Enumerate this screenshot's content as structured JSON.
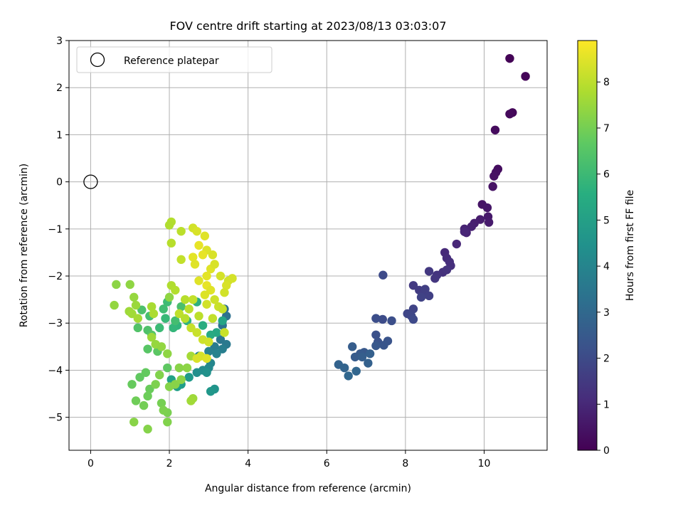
{
  "chart_data": {
    "type": "scatter",
    "title": "FOV centre drift starting at 2023/08/13 03:03:07",
    "xlabel": "Angular distance from reference (arcmin)",
    "ylabel": "Rotation from reference (arcmin)",
    "xlim": [
      -0.55,
      11.6
    ],
    "ylim": [
      -5.7,
      3.0
    ],
    "xticks": [
      0,
      2,
      4,
      6,
      8,
      10
    ],
    "yticks": [
      -5,
      -4,
      -3,
      -2,
      -1,
      0,
      1,
      2,
      3
    ],
    "grid": true,
    "legend": {
      "location": "upper-left",
      "entries": [
        "Reference platepar"
      ]
    },
    "reference_point": {
      "x": 0,
      "y": 0,
      "label": "Reference platepar"
    },
    "colorbar": {
      "label": "Hours from first FF file",
      "colormap": "viridis",
      "range": [
        0,
        8.9
      ],
      "ticks": [
        0,
        1,
        2,
        3,
        4,
        5,
        6,
        7,
        8
      ]
    },
    "series": [
      {
        "color_by": "hours",
        "points": [
          {
            "x": 10.65,
            "y": 2.62,
            "c": 0.05
          },
          {
            "x": 11.05,
            "y": 2.24,
            "c": 0.1
          },
          {
            "x": 10.72,
            "y": 1.47,
            "c": 0.15
          },
          {
            "x": 10.65,
            "y": 1.44,
            "c": 0.2
          },
          {
            "x": 10.28,
            "y": 1.1,
            "c": 0.25
          },
          {
            "x": 10.35,
            "y": 0.27,
            "c": 0.3
          },
          {
            "x": 10.3,
            "y": 0.2,
            "c": 0.35
          },
          {
            "x": 10.25,
            "y": 0.12,
            "c": 0.4
          },
          {
            "x": 10.22,
            "y": -0.1,
            "c": 0.45
          },
          {
            "x": 9.95,
            "y": -0.48,
            "c": 0.5
          },
          {
            "x": 10.08,
            "y": -0.55,
            "c": 0.55
          },
          {
            "x": 10.1,
            "y": -0.74,
            "c": 0.6
          },
          {
            "x": 10.12,
            "y": -0.86,
            "c": 0.65
          },
          {
            "x": 9.9,
            "y": -0.8,
            "c": 0.7
          },
          {
            "x": 9.75,
            "y": -0.88,
            "c": 0.75
          },
          {
            "x": 9.68,
            "y": -0.95,
            "c": 0.8
          },
          {
            "x": 9.5,
            "y": -1.0,
            "c": 0.85
          },
          {
            "x": 9.55,
            "y": -1.08,
            "c": 0.9
          },
          {
            "x": 9.5,
            "y": -1.06,
            "c": 0.95
          },
          {
            "x": 9.3,
            "y": -1.32,
            "c": 1.0
          },
          {
            "x": 9.0,
            "y": -1.5,
            "c": 1.05
          },
          {
            "x": 9.05,
            "y": -1.62,
            "c": 1.1
          },
          {
            "x": 9.12,
            "y": -1.7,
            "c": 1.15
          },
          {
            "x": 9.15,
            "y": -1.78,
            "c": 1.2
          },
          {
            "x": 8.95,
            "y": -1.92,
            "c": 1.25
          },
          {
            "x": 9.05,
            "y": -1.87,
            "c": 1.3
          },
          {
            "x": 8.8,
            "y": -1.98,
            "c": 1.35
          },
          {
            "x": 8.75,
            "y": -2.05,
            "c": 1.4
          },
          {
            "x": 8.6,
            "y": -1.9,
            "c": 1.45
          },
          {
            "x": 8.2,
            "y": -2.2,
            "c": 1.5
          },
          {
            "x": 8.35,
            "y": -2.3,
            "c": 1.55
          },
          {
            "x": 8.45,
            "y": -2.38,
            "c": 1.6
          },
          {
            "x": 8.5,
            "y": -2.28,
            "c": 1.65
          },
          {
            "x": 8.6,
            "y": -2.42,
            "c": 1.7
          },
          {
            "x": 8.4,
            "y": -2.45,
            "c": 1.75
          },
          {
            "x": 8.2,
            "y": -2.7,
            "c": 1.8
          },
          {
            "x": 8.05,
            "y": -2.8,
            "c": 1.85
          },
          {
            "x": 8.15,
            "y": -2.85,
            "c": 1.9
          },
          {
            "x": 8.2,
            "y": -2.92,
            "c": 1.95
          },
          {
            "x": 7.43,
            "y": -1.98,
            "c": 2.0
          },
          {
            "x": 7.42,
            "y": -2.92,
            "c": 2.05
          },
          {
            "x": 7.25,
            "y": -2.9,
            "c": 2.1
          },
          {
            "x": 7.65,
            "y": -2.95,
            "c": 2.15
          },
          {
            "x": 7.25,
            "y": -3.25,
            "c": 2.2
          },
          {
            "x": 7.3,
            "y": -3.4,
            "c": 2.25
          },
          {
            "x": 7.55,
            "y": -3.38,
            "c": 2.3
          },
          {
            "x": 7.45,
            "y": -3.47,
            "c": 2.35
          },
          {
            "x": 7.25,
            "y": -3.48,
            "c": 2.4
          },
          {
            "x": 6.95,
            "y": -3.62,
            "c": 2.45
          },
          {
            "x": 6.85,
            "y": -3.65,
            "c": 2.5
          },
          {
            "x": 6.72,
            "y": -3.72,
            "c": 2.55
          },
          {
            "x": 6.65,
            "y": -3.5,
            "c": 2.6
          },
          {
            "x": 6.9,
            "y": -3.72,
            "c": 2.65
          },
          {
            "x": 7.1,
            "y": -3.65,
            "c": 2.7
          },
          {
            "x": 7.05,
            "y": -3.85,
            "c": 2.75
          },
          {
            "x": 6.3,
            "y": -3.88,
            "c": 2.8
          },
          {
            "x": 6.45,
            "y": -3.95,
            "c": 2.85
          },
          {
            "x": 6.75,
            "y": -4.02,
            "c": 2.9
          },
          {
            "x": 6.55,
            "y": -4.12,
            "c": 2.95
          },
          {
            "x": 3.4,
            "y": -2.7,
            "c": 3.2
          },
          {
            "x": 3.45,
            "y": -2.85,
            "c": 3.3
          },
          {
            "x": 3.35,
            "y": -3.05,
            "c": 3.4
          },
          {
            "x": 3.3,
            "y": -3.35,
            "c": 3.5
          },
          {
            "x": 3.45,
            "y": -3.45,
            "c": 3.6
          },
          {
            "x": 3.15,
            "y": -3.5,
            "c": 3.7
          },
          {
            "x": 3.35,
            "y": -3.55,
            "c": 3.8
          },
          {
            "x": 3.0,
            "y": -3.6,
            "c": 3.9
          },
          {
            "x": 3.2,
            "y": -3.65,
            "c": 4.0
          },
          {
            "x": 2.75,
            "y": -3.7,
            "c": 4.05
          },
          {
            "x": 3.05,
            "y": -3.85,
            "c": 4.1
          },
          {
            "x": 3.0,
            "y": -3.95,
            "c": 4.2
          },
          {
            "x": 2.85,
            "y": -4.0,
            "c": 4.3
          },
          {
            "x": 2.7,
            "y": -4.05,
            "c": 4.4
          },
          {
            "x": 2.95,
            "y": -4.05,
            "c": 4.5
          },
          {
            "x": 3.15,
            "y": -4.4,
            "c": 4.6
          },
          {
            "x": 3.05,
            "y": -4.45,
            "c": 4.7
          },
          {
            "x": 2.5,
            "y": -4.15,
            "c": 4.8
          },
          {
            "x": 2.3,
            "y": -4.3,
            "c": 4.9
          },
          {
            "x": 2.2,
            "y": -4.35,
            "c": 5.0
          },
          {
            "x": 2.05,
            "y": -4.2,
            "c": 5.1
          },
          {
            "x": 3.35,
            "y": -2.95,
            "c": 5.2
          },
          {
            "x": 3.2,
            "y": -3.2,
            "c": 5.3
          },
          {
            "x": 3.05,
            "y": -3.25,
            "c": 5.4
          },
          {
            "x": 2.85,
            "y": -3.05,
            "c": 5.5
          },
          {
            "x": 2.7,
            "y": -2.55,
            "c": 5.6
          },
          {
            "x": 2.45,
            "y": -2.95,
            "c": 5.7
          },
          {
            "x": 2.2,
            "y": -3.05,
            "c": 5.8
          },
          {
            "x": 2.1,
            "y": -3.1,
            "c": 5.9
          },
          {
            "x": 1.9,
            "y": -2.9,
            "c": 6.0
          },
          {
            "x": 1.75,
            "y": -3.1,
            "c": 6.05
          },
          {
            "x": 1.95,
            "y": -2.55,
            "c": 6.1
          },
          {
            "x": 1.85,
            "y": -2.7,
            "c": 6.15
          },
          {
            "x": 2.15,
            "y": -2.95,
            "c": 6.2
          },
          {
            "x": 1.5,
            "y": -2.85,
            "c": 6.25
          },
          {
            "x": 2.3,
            "y": -2.65,
            "c": 6.3
          },
          {
            "x": 1.3,
            "y": -2.72,
            "c": 6.35
          },
          {
            "x": 1.45,
            "y": -3.15,
            "c": 6.4
          },
          {
            "x": 1.2,
            "y": -3.1,
            "c": 6.45
          },
          {
            "x": 1.55,
            "y": -3.25,
            "c": 6.5
          },
          {
            "x": 1.45,
            "y": -3.55,
            "c": 6.55
          },
          {
            "x": 1.7,
            "y": -3.6,
            "c": 6.6
          },
          {
            "x": 1.95,
            "y": -3.95,
            "c": 6.65
          },
          {
            "x": 1.25,
            "y": -4.15,
            "c": 6.7
          },
          {
            "x": 1.4,
            "y": -4.05,
            "c": 6.75
          },
          {
            "x": 1.05,
            "y": -4.3,
            "c": 6.8
          },
          {
            "x": 1.5,
            "y": -4.4,
            "c": 6.85
          },
          {
            "x": 1.45,
            "y": -4.55,
            "c": 6.9
          },
          {
            "x": 1.15,
            "y": -4.65,
            "c": 6.95
          },
          {
            "x": 1.35,
            "y": -4.75,
            "c": 7.0
          },
          {
            "x": 1.8,
            "y": -4.7,
            "c": 7.05
          },
          {
            "x": 1.95,
            "y": -4.9,
            "c": 7.1
          },
          {
            "x": 1.85,
            "y": -4.85,
            "c": 7.15
          },
          {
            "x": 1.95,
            "y": -5.1,
            "c": 7.2
          },
          {
            "x": 1.45,
            "y": -5.25,
            "c": 7.25
          },
          {
            "x": 1.1,
            "y": -5.1,
            "c": 7.3
          },
          {
            "x": 0.65,
            "y": -2.18,
            "c": 7.35
          },
          {
            "x": 1.0,
            "y": -2.18,
            "c": 7.4
          },
          {
            "x": 0.6,
            "y": -2.62,
            "c": 7.45
          },
          {
            "x": 1.1,
            "y": -2.45,
            "c": 7.5
          },
          {
            "x": 1.15,
            "y": -2.62,
            "c": 7.55
          },
          {
            "x": 0.98,
            "y": -2.75,
            "c": 7.6
          },
          {
            "x": 1.05,
            "y": -2.8,
            "c": 7.65
          },
          {
            "x": 1.2,
            "y": -2.9,
            "c": 7.7
          },
          {
            "x": 1.55,
            "y": -2.65,
            "c": 7.75
          },
          {
            "x": 1.6,
            "y": -2.8,
            "c": 7.8
          },
          {
            "x": 2.05,
            "y": -2.2,
            "c": 7.85
          },
          {
            "x": 2.15,
            "y": -2.3,
            "c": 7.9
          },
          {
            "x": 2.4,
            "y": -2.5,
            "c": 7.95
          },
          {
            "x": 2.5,
            "y": -2.7,
            "c": 8.0
          },
          {
            "x": 2.25,
            "y": -2.8,
            "c": 8.05
          },
          {
            "x": 2.6,
            "y": -2.5,
            "c": 8.1
          },
          {
            "x": 2.55,
            "y": -3.1,
            "c": 8.15
          },
          {
            "x": 2.7,
            "y": -3.2,
            "c": 8.2
          },
          {
            "x": 2.85,
            "y": -3.35,
            "c": 8.25
          },
          {
            "x": 3.0,
            "y": -3.4,
            "c": 8.3
          },
          {
            "x": 1.55,
            "y": -3.3,
            "c": 7.6
          },
          {
            "x": 1.65,
            "y": -3.45,
            "c": 7.5
          },
          {
            "x": 1.8,
            "y": -3.5,
            "c": 7.45
          },
          {
            "x": 1.95,
            "y": -3.65,
            "c": 7.4
          },
          {
            "x": 2.25,
            "y": -3.95,
            "c": 7.3
          },
          {
            "x": 2.45,
            "y": -3.95,
            "c": 7.35
          },
          {
            "x": 2.0,
            "y": -4.35,
            "c": 7.25
          },
          {
            "x": 2.15,
            "y": -4.3,
            "c": 7.3
          },
          {
            "x": 1.75,
            "y": -4.1,
            "c": 7.2
          },
          {
            "x": 1.65,
            "y": -4.3,
            "c": 7.15
          },
          {
            "x": 2.3,
            "y": -4.2,
            "c": 7.35
          },
          {
            "x": 2.6,
            "y": -4.6,
            "c": 7.6
          },
          {
            "x": 2.55,
            "y": -4.65,
            "c": 7.65
          },
          {
            "x": 2.55,
            "y": -3.7,
            "c": 7.7
          },
          {
            "x": 2.05,
            "y": -0.85,
            "c": 7.9
          },
          {
            "x": 2.0,
            "y": -0.92,
            "c": 7.85
          },
          {
            "x": 2.05,
            "y": -1.3,
            "c": 7.95
          },
          {
            "x": 2.3,
            "y": -1.05,
            "c": 8.0
          },
          {
            "x": 2.3,
            "y": -1.65,
            "c": 8.1
          },
          {
            "x": 2.6,
            "y": -0.98,
            "c": 8.3
          },
          {
            "x": 2.7,
            "y": -1.05,
            "c": 8.4
          },
          {
            "x": 2.9,
            "y": -1.15,
            "c": 8.5
          },
          {
            "x": 2.75,
            "y": -1.35,
            "c": 8.6
          },
          {
            "x": 2.6,
            "y": -1.6,
            "c": 8.55
          },
          {
            "x": 2.65,
            "y": -1.75,
            "c": 8.5
          },
          {
            "x": 2.95,
            "y": -1.45,
            "c": 8.45
          },
          {
            "x": 3.1,
            "y": -1.55,
            "c": 8.4
          },
          {
            "x": 2.85,
            "y": -1.55,
            "c": 8.6
          },
          {
            "x": 3.05,
            "y": -1.85,
            "c": 8.5
          },
          {
            "x": 2.95,
            "y": -2.0,
            "c": 8.55
          },
          {
            "x": 3.15,
            "y": -1.75,
            "c": 8.4
          },
          {
            "x": 3.3,
            "y": -2.0,
            "c": 8.35
          },
          {
            "x": 3.5,
            "y": -2.1,
            "c": 8.3
          },
          {
            "x": 3.6,
            "y": -2.05,
            "c": 8.35
          },
          {
            "x": 3.45,
            "y": -2.2,
            "c": 8.4
          },
          {
            "x": 2.75,
            "y": -2.1,
            "c": 8.5
          },
          {
            "x": 2.95,
            "y": -2.2,
            "c": 8.6
          },
          {
            "x": 3.05,
            "y": -2.3,
            "c": 8.5
          },
          {
            "x": 3.4,
            "y": -2.35,
            "c": 8.3
          },
          {
            "x": 2.9,
            "y": -2.4,
            "c": 8.45
          },
          {
            "x": 3.15,
            "y": -2.5,
            "c": 8.25
          },
          {
            "x": 3.25,
            "y": -2.65,
            "c": 8.2
          },
          {
            "x": 3.35,
            "y": -2.7,
            "c": 8.15
          },
          {
            "x": 2.95,
            "y": -2.6,
            "c": 8.3
          },
          {
            "x": 3.1,
            "y": -2.9,
            "c": 8.1
          },
          {
            "x": 2.75,
            "y": -2.85,
            "c": 8.0
          },
          {
            "x": 2.4,
            "y": -2.9,
            "c": 7.95
          },
          {
            "x": 3.4,
            "y": -3.2,
            "c": 8.2
          },
          {
            "x": 2.8,
            "y": -3.7,
            "c": 8.35
          },
          {
            "x": 2.95,
            "y": -3.75,
            "c": 8.45
          },
          {
            "x": 2.7,
            "y": -3.75,
            "c": 8.4
          },
          {
            "x": 2.0,
            "y": -2.45,
            "c": 7.4
          }
        ]
      }
    ]
  }
}
